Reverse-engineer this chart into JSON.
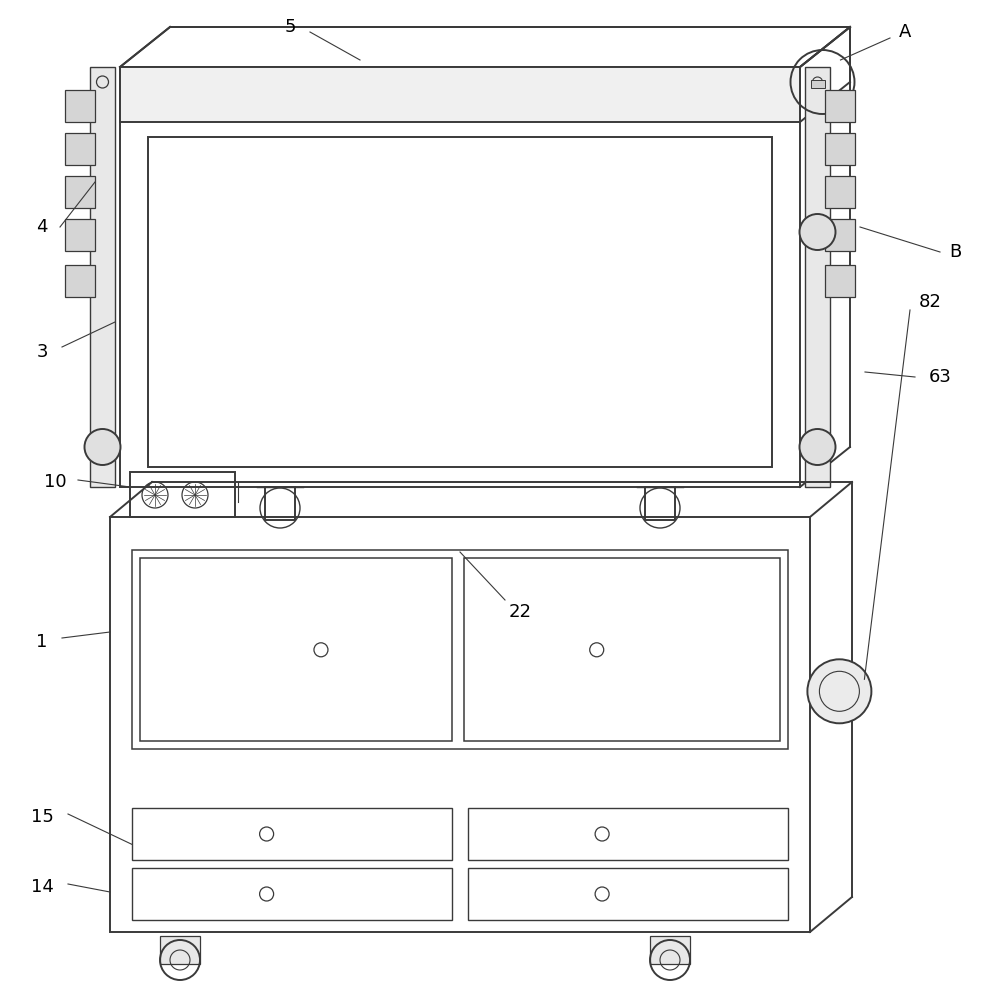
{
  "bg_color": "#ffffff",
  "lc": "#3a3a3a",
  "lw": 1.4,
  "fig_width": 10.0,
  "fig_height": 9.82
}
